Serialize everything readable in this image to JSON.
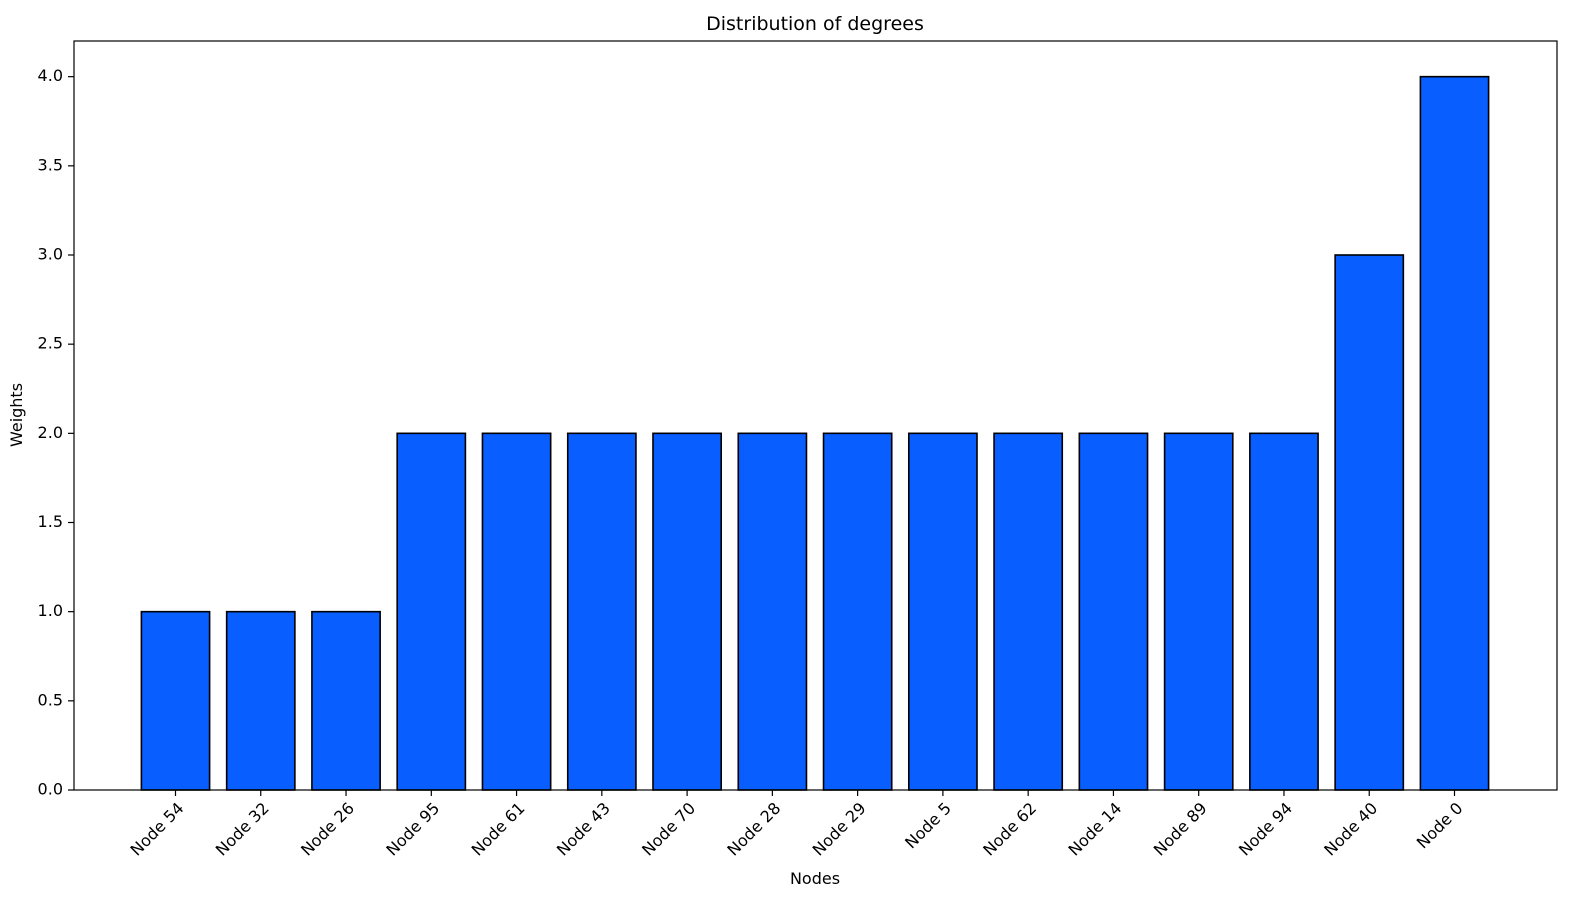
{
  "chart_data": {
    "type": "bar",
    "title": "Distribution of degrees",
    "xlabel": "Nodes",
    "ylabel": "Weights",
    "categories": [
      "Node 54",
      "Node 32",
      "Node 26",
      "Node 95",
      "Node 61",
      "Node 43",
      "Node 70",
      "Node 28",
      "Node 29",
      "Node 5",
      "Node 62",
      "Node 14",
      "Node 89",
      "Node 94",
      "Node 40",
      "Node 0"
    ],
    "values": [
      1,
      1,
      1,
      2,
      2,
      2,
      2,
      2,
      2,
      2,
      2,
      2,
      2,
      2,
      3,
      4
    ],
    "ylim": [
      0,
      4.2
    ],
    "yticks": [
      0.0,
      0.5,
      1.0,
      1.5,
      2.0,
      2.5,
      3.0,
      3.5,
      4.0
    ],
    "ytick_labels": [
      "0.0",
      "0.5",
      "1.0",
      "1.5",
      "2.0",
      "2.5",
      "3.0",
      "3.5",
      "4.0"
    ],
    "grid": false,
    "legend": "none",
    "bar_color": "#085eff",
    "bar_edge_color": "#000000",
    "xtick_rotation_deg": 45
  }
}
